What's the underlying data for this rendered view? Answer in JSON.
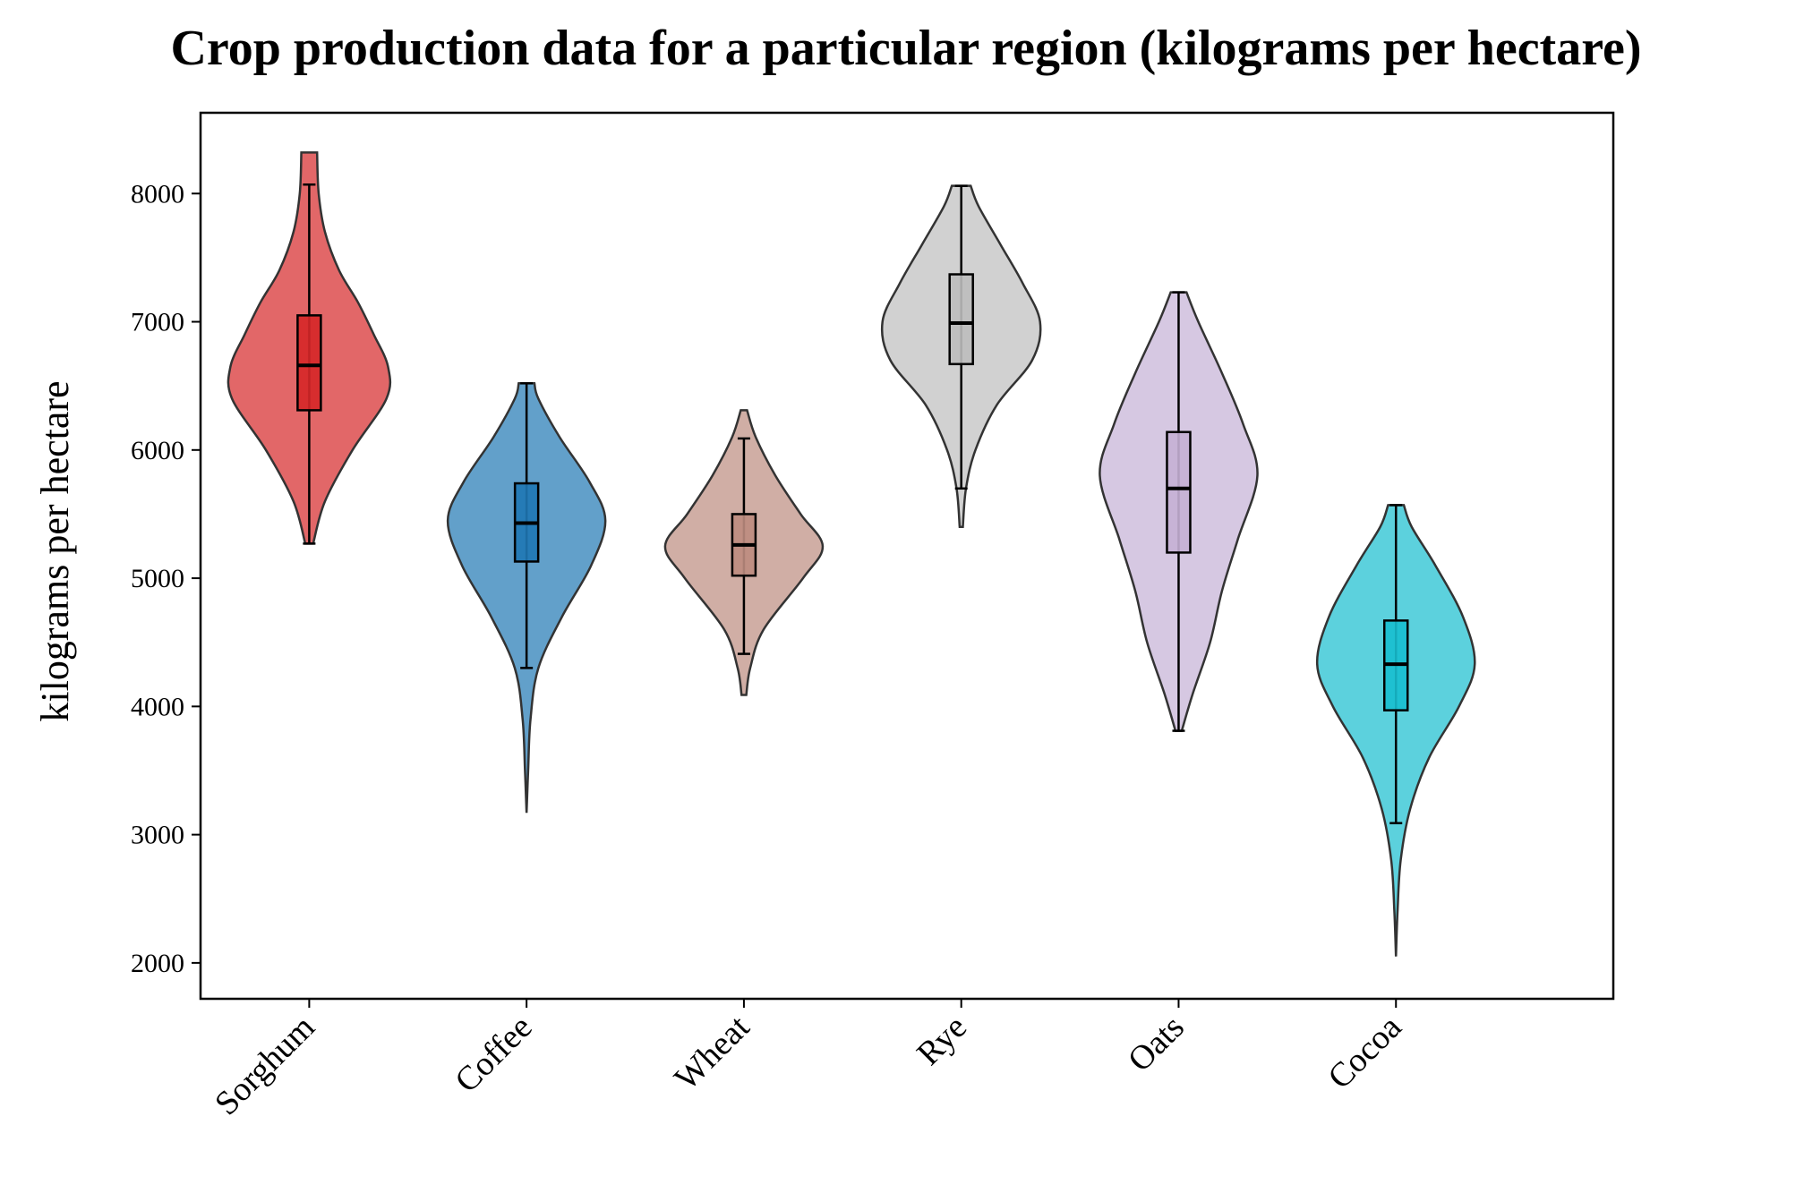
{
  "chart_data": {
    "type": "violin",
    "title": "Crop production data for a particular region (kilograms per hectare)",
    "xlabel": "",
    "ylabel": "kilograms per hectare",
    "ylim": [
      1720,
      8630
    ],
    "yticks": [
      2000,
      3000,
      4000,
      5000,
      6000,
      7000,
      8000
    ],
    "grid": false,
    "legend": "none",
    "categories": [
      "Sorghum",
      "Coffee",
      "Wheat",
      "Rye",
      "Oats",
      "Cocoa"
    ],
    "series": [
      {
        "category": "Sorghum",
        "color": "#d62728",
        "violin_min": 5270,
        "violin_max": 8320,
        "whisker_low": 5270,
        "q1": 6310,
        "median": 6660,
        "q3": 7050,
        "whisker_high": 8070,
        "density": [
          [
            5270,
            0.05
          ],
          [
            5600,
            0.2
          ],
          [
            6000,
            0.55
          ],
          [
            6400,
            0.98
          ],
          [
            6650,
            1.0
          ],
          [
            6900,
            0.82
          ],
          [
            7150,
            0.62
          ],
          [
            7400,
            0.38
          ],
          [
            7700,
            0.2
          ],
          [
            8000,
            0.12
          ],
          [
            8320,
            0.1
          ]
        ]
      },
      {
        "category": "Coffee",
        "color": "#1f77b4",
        "violin_min": 3170,
        "violin_max": 6520,
        "whisker_low": 4300,
        "q1": 5130,
        "median": 5430,
        "q3": 5740,
        "whisker_high": 6520,
        "density": [
          [
            3170,
            0.0
          ],
          [
            3500,
            0.02
          ],
          [
            3900,
            0.05
          ],
          [
            4300,
            0.15
          ],
          [
            4700,
            0.45
          ],
          [
            5100,
            0.82
          ],
          [
            5450,
            1.0
          ],
          [
            5750,
            0.8
          ],
          [
            6100,
            0.42
          ],
          [
            6400,
            0.15
          ],
          [
            6520,
            0.1
          ]
        ]
      },
      {
        "category": "Wheat",
        "color": "#bc8c7f",
        "violin_min": 4090,
        "violin_max": 6310,
        "whisker_low": 4410,
        "q1": 5020,
        "median": 5260,
        "q3": 5500,
        "whisker_high": 6090,
        "density": [
          [
            4090,
            0.03
          ],
          [
            4300,
            0.08
          ],
          [
            4600,
            0.25
          ],
          [
            5000,
            0.75
          ],
          [
            5250,
            1.0
          ],
          [
            5500,
            0.72
          ],
          [
            5800,
            0.4
          ],
          [
            6100,
            0.15
          ],
          [
            6310,
            0.04
          ]
        ]
      },
      {
        "category": "Rye",
        "color": "#bdbdbd",
        "violin_min": 5400,
        "violin_max": 8060,
        "whisker_low": 5700,
        "q1": 6670,
        "median": 6990,
        "q3": 7370,
        "whisker_high": 8060,
        "density": [
          [
            5400,
            0.02
          ],
          [
            5700,
            0.06
          ],
          [
            6000,
            0.18
          ],
          [
            6350,
            0.45
          ],
          [
            6700,
            0.9
          ],
          [
            7000,
            1.0
          ],
          [
            7300,
            0.78
          ],
          [
            7600,
            0.5
          ],
          [
            7900,
            0.22
          ],
          [
            8060,
            0.12
          ]
        ]
      },
      {
        "category": "Oats",
        "color": "#c5b0d5",
        "violin_min": 3810,
        "violin_max": 7230,
        "whisker_low": 3810,
        "q1": 5200,
        "median": 5700,
        "q3": 6140,
        "whisker_high": 7230,
        "density": [
          [
            3810,
            0.04
          ],
          [
            4100,
            0.18
          ],
          [
            4500,
            0.4
          ],
          [
            4900,
            0.55
          ],
          [
            5300,
            0.75
          ],
          [
            5800,
            1.0
          ],
          [
            6200,
            0.82
          ],
          [
            6600,
            0.55
          ],
          [
            7000,
            0.25
          ],
          [
            7230,
            0.1
          ]
        ]
      },
      {
        "category": "Cocoa",
        "color": "#17becf",
        "violin_min": 2050,
        "violin_max": 5570,
        "whisker_low": 3090,
        "q1": 3970,
        "median": 4330,
        "q3": 4670,
        "whisker_high": 5570,
        "density": [
          [
            2050,
            0.0
          ],
          [
            2400,
            0.02
          ],
          [
            2800,
            0.06
          ],
          [
            3200,
            0.18
          ],
          [
            3600,
            0.42
          ],
          [
            4000,
            0.8
          ],
          [
            4330,
            1.0
          ],
          [
            4700,
            0.85
          ],
          [
            5100,
            0.5
          ],
          [
            5400,
            0.2
          ],
          [
            5570,
            0.1
          ]
        ]
      }
    ]
  }
}
